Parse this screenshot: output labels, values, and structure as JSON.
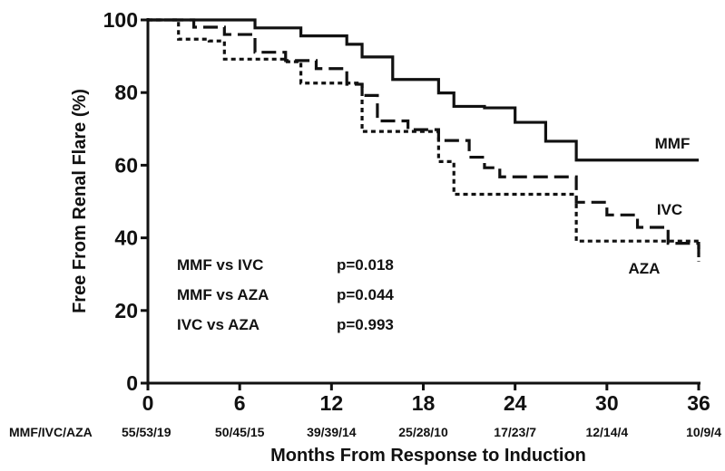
{
  "chart_data": {
    "type": "line",
    "subtype": "kaplan-meier-survival",
    "title": "",
    "xlabel": "Months From Response to Induction",
    "ylabel": "Free From Renal Flare (%)",
    "xlim": [
      0,
      36
    ],
    "ylim": [
      0,
      100
    ],
    "xticks": [
      0,
      6,
      12,
      18,
      24,
      30,
      36
    ],
    "yticks": [
      0,
      20,
      40,
      60,
      80,
      100
    ],
    "grid": false,
    "series": [
      {
        "name": "MMF",
        "line_style": "solid",
        "color": "#111111",
        "x": [
          0,
          7,
          10,
          13,
          14,
          16,
          19,
          20,
          22,
          24,
          26,
          28,
          36
        ],
        "y": [
          100,
          97.8,
          95.6,
          93.3,
          89.8,
          83.6,
          79.9,
          76.2,
          75.8,
          71.8,
          66.6,
          61.4,
          61.4
        ]
      },
      {
        "name": "IVC",
        "line_style": "dashed",
        "color": "#111111",
        "x": [
          0,
          3,
          5,
          7,
          9,
          11,
          13,
          14,
          15,
          17,
          19,
          21,
          22,
          23,
          25,
          27,
          28,
          30,
          32,
          34,
          35,
          36
        ],
        "y": [
          100,
          98,
          96,
          91.1,
          88.8,
          86.6,
          82.3,
          79.2,
          72.2,
          69.8,
          66.8,
          62.2,
          59.3,
          56.8,
          56.8,
          56.8,
          49.8,
          46.3,
          42.9,
          38.5,
          38.5,
          35.8
        ]
      },
      {
        "name": "AZA",
        "line_style": "dotted",
        "color": "#111111",
        "x": [
          0,
          2,
          4,
          5,
          9,
          10,
          12,
          14,
          16,
          18,
          19,
          20,
          22,
          26,
          28,
          34,
          36
        ],
        "y": [
          100,
          94.7,
          94.2,
          89.2,
          88.5,
          82.6,
          82.6,
          69.3,
          69.3,
          69.3,
          61,
          52,
          52,
          52,
          39.1,
          39.1,
          33.5
        ]
      }
    ],
    "series_labels": [
      "MMF",
      "IVC",
      "AZA"
    ],
    "annotations": [
      {
        "comparison": "MMF vs IVC",
        "p_value": "p=0.018"
      },
      {
        "comparison": "MMF vs AZA",
        "p_value": "p=0.044"
      },
      {
        "comparison": "IVC vs AZA",
        "p_value": "p=0.993"
      }
    ],
    "at_risk": {
      "label": "MMF/IVC/AZA",
      "months": [
        0,
        6,
        12,
        18,
        24,
        30,
        36
      ],
      "values": [
        "55/53/19",
        "50/45/15",
        "39/39/14",
        "25/28/10",
        "17/23/7",
        "12/14/4",
        "10/9/4"
      ]
    }
  }
}
